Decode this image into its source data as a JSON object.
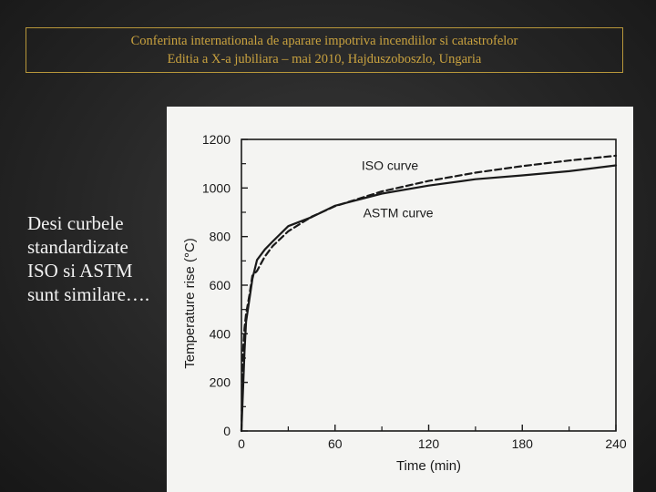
{
  "header": {
    "line1": "Conferinta internationala de aparare impotriva incendiilor si catastrofelor",
    "line2": "Editia a X-a jubiliara – mai 2010, Hajduszoboszlo, Ungaria"
  },
  "side_text": {
    "lines": [
      "Desi curbele",
      "standardizate",
      "ISO si ASTM",
      "sunt similare…."
    ]
  },
  "colors": {
    "header_gold": "#c9a23f",
    "chart_bg": "#f4f4f2",
    "ink": "#1a1a1a"
  },
  "chart_data": {
    "type": "line",
    "title": "",
    "xlabel": "Time (min)",
    "ylabel": "Temperature rise (°C)",
    "xlim": [
      0,
      240
    ],
    "ylim": [
      0,
      1200
    ],
    "xticks": [
      0,
      60,
      120,
      180,
      240
    ],
    "yticks": [
      0,
      200,
      400,
      600,
      800,
      1000,
      1200
    ],
    "grid": false,
    "series": [
      {
        "name": "ISO curve",
        "style": "dashed",
        "x": [
          0,
          1,
          2,
          3,
          5,
          7,
          10,
          15,
          20,
          30,
          45,
          60,
          90,
          120,
          150,
          180,
          210,
          240
        ],
        "y": [
          0,
          329,
          425,
          482,
          556,
          639,
          659,
          718,
          761,
          822,
          882,
          925,
          986,
          1029,
          1063,
          1090,
          1113,
          1133
        ]
      },
      {
        "name": "ASTM curve",
        "style": "solid",
        "x": [
          0,
          2,
          3,
          5,
          7,
          10,
          15,
          20,
          30,
          45,
          60,
          90,
          120,
          150,
          180,
          210,
          240
        ],
        "y": [
          0,
          330,
          450,
          538,
          625,
          704,
          747,
          780,
          843,
          880,
          927,
          977,
          1010,
          1036,
          1052,
          1069,
          1093
        ]
      }
    ]
  }
}
